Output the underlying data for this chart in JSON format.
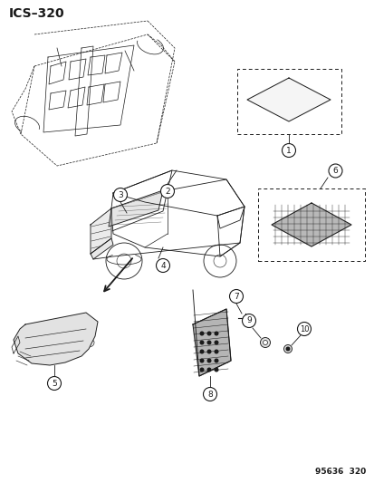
{
  "title": "ICS–320",
  "footer": "95636  320",
  "bg": "#ffffff",
  "lc": "#1a1a1a",
  "lc_light": "#888888",
  "title_fontsize": 10,
  "label_fontsize": 6.5,
  "circle_r": 7.5
}
